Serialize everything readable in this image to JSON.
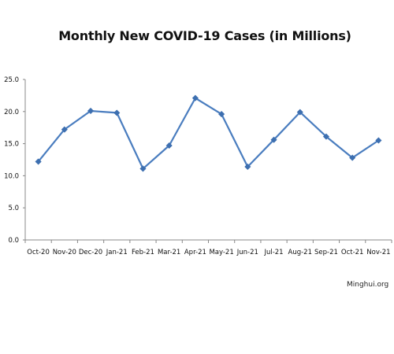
{
  "chart_data": {
    "type": "line",
    "title": "Monthly New COVID-19 Cases (in Millions)",
    "xlabel": "",
    "ylabel": "",
    "categories": [
      "Oct-20",
      "Nov-20",
      "Dec-20",
      "Jan-21",
      "Feb-21",
      "Mar-21",
      "Apr-21",
      "May-21",
      "Jun-21",
      "Jul-21",
      "Aug-21",
      "Sep-21",
      "Oct-21",
      "Nov-21"
    ],
    "series": [
      {
        "values": [
          12.2,
          17.2,
          20.1,
          19.8,
          11.1,
          14.7,
          22.1,
          19.6,
          11.4,
          15.6,
          19.9,
          16.1,
          12.8,
          15.5
        ]
      }
    ],
    "ylim": [
      0,
      25
    ],
    "yticks": [
      "0.0",
      "5.0",
      "10.0",
      "15.0",
      "20.0",
      "25.0"
    ],
    "grid": false,
    "legend": "none",
    "colors": {
      "line": "#4a7dbf",
      "marker": "#3d6fb0",
      "axis": "#888888"
    }
  },
  "watermark": "Minghui.org"
}
